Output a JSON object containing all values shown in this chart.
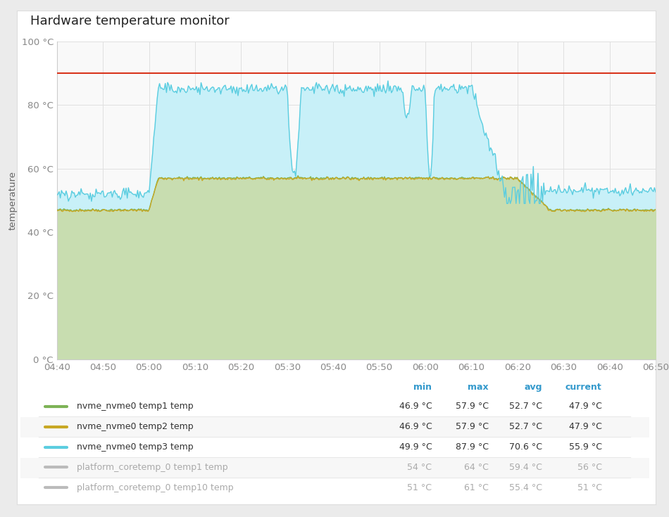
{
  "title": "Hardware temperature monitor",
  "ylabel": "temperature",
  "xlabel_ticks": [
    "04:40",
    "04:50",
    "05:00",
    "05:10",
    "05:20",
    "05:30",
    "05:40",
    "05:50",
    "06:00",
    "06:10",
    "06:20",
    "06:30",
    "06:40",
    "06:50"
  ],
  "ylim": [
    0,
    100
  ],
  "yticks": [
    0,
    20,
    40,
    60,
    80,
    100
  ],
  "ytick_labels": [
    "0 °C",
    "20 °C",
    "40 °C",
    "60 °C",
    "80 °C",
    "100 °C"
  ],
  "plot_bg_color": "#f9f9f9",
  "outer_bg_color": "#ebebeb",
  "card_bg_color": "#ffffff",
  "grid_color": "#e0e0e0",
  "threshold_line": 90,
  "threshold_color": "#d9341c",
  "green_fill_color": "#c8ddb0",
  "cyan_fill_color": "#c8f0f8",
  "series": {
    "temp1": {
      "color": "#7db356",
      "label": "nvme_nvme0 temp1 temp",
      "min": "46.9 °C",
      "max": "57.9 °C",
      "avg": "52.7 °C",
      "current": "47.9 °C"
    },
    "temp2": {
      "color": "#c8a824",
      "label": "nvme_nvme0 temp2 temp",
      "min": "46.9 °C",
      "max": "57.9 °C",
      "avg": "52.7 °C",
      "current": "47.9 °C"
    },
    "temp3": {
      "color": "#5bcde0",
      "label": "nvme_nvme0 temp3 temp",
      "min": "49.9 °C",
      "max": "87.9 °C",
      "avg": "70.6 °C",
      "current": "55.9 °C"
    },
    "coretemp1": {
      "color": "#e8834a",
      "label": "platform_coretemp_0 temp1 temp",
      "min": "54 °C",
      "max": "64 °C",
      "avg": "59.4 °C",
      "current": "56 °C",
      "greyed": true
    },
    "coretemp10": {
      "color": "#cc3322",
      "label": "platform_coretemp_0 temp10 temp",
      "min": "51 °C",
      "max": "61 °C",
      "avg": "55.4 °C",
      "current": "51 °C",
      "greyed": true
    }
  },
  "legend_header_color": "#3399cc",
  "legend_text_color_active": "#333333",
  "legend_text_color_grey": "#aaaaaa",
  "tick_positions": [
    0,
    10,
    20,
    30,
    40,
    50,
    60,
    70,
    80,
    90,
    100,
    110,
    120,
    130
  ]
}
